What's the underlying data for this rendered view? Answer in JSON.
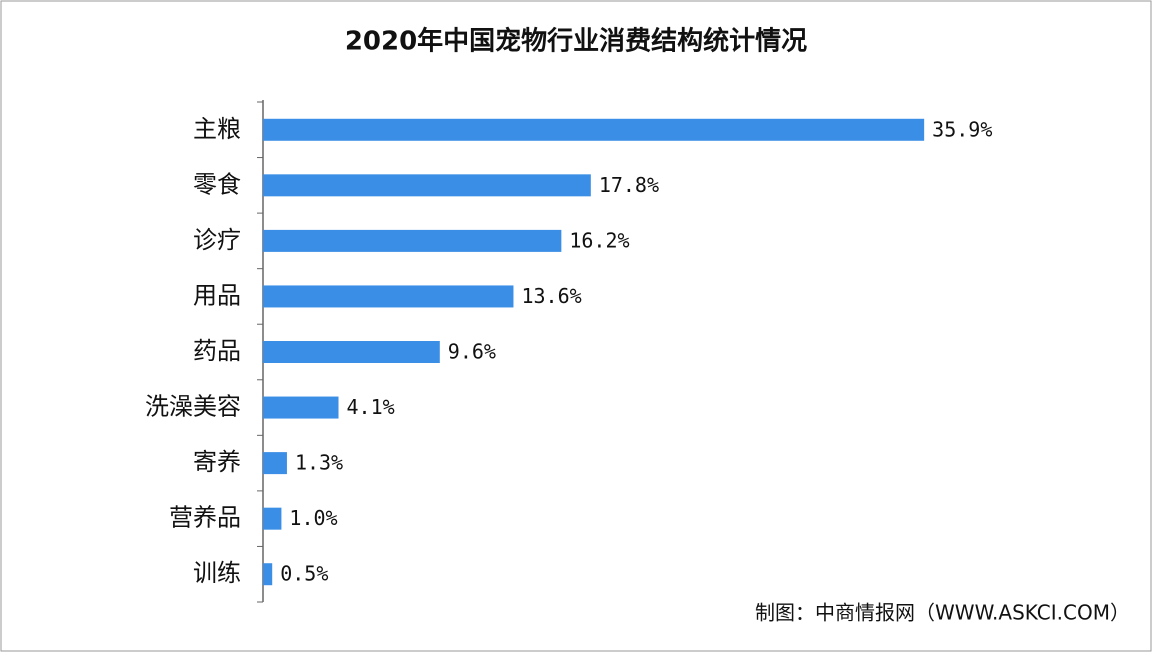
{
  "chart_data": {
    "type": "hbar",
    "title": "2020年中国宠物行业消费结构统计情况",
    "categories": [
      "主粮",
      "零食",
      "诊疗",
      "用品",
      "药品",
      "洗澡美容",
      "寄养",
      "营养品",
      "训练"
    ],
    "values": [
      35.9,
      17.8,
      16.2,
      13.6,
      9.6,
      4.1,
      1.3,
      1.0,
      0.5
    ],
    "value_labels": [
      "35.9%",
      "17.8%",
      "16.2%",
      "13.6%",
      "9.6%",
      "4.1%",
      "1.3%",
      "1.0%",
      "0.5%"
    ],
    "color": "#3a8ee6",
    "xlim": [
      0,
      36
    ],
    "source": "制图：中商情报网（WWW.ASKCI.COM）"
  }
}
